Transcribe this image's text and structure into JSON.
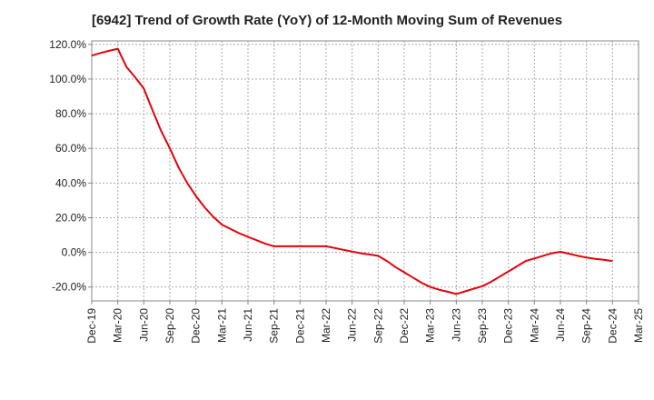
{
  "chart_data": {
    "type": "line",
    "title": "[6942]  Trend of Growth Rate (YoY) of 12-Month Moving Sum of Revenues",
    "xlabel": "",
    "ylabel": "",
    "ylim": [
      -28,
      122
    ],
    "yticks": [
      -20,
      0,
      20,
      40,
      60,
      80,
      100,
      120
    ],
    "ytick_labels": [
      "-20.0%",
      "0.0%",
      "20.0%",
      "40.0%",
      "60.0%",
      "80.0%",
      "100.0%",
      "120.0%"
    ],
    "xtick_labels": [
      "Dec-19",
      "Mar-20",
      "Jun-20",
      "Sep-20",
      "Dec-20",
      "Mar-21",
      "Jun-21",
      "Sep-21",
      "Dec-21",
      "Mar-22",
      "Jun-22",
      "Sep-22",
      "Dec-22",
      "Mar-23",
      "Jun-23",
      "Sep-23",
      "Dec-23",
      "Mar-24",
      "Jun-24",
      "Sep-24",
      "Dec-24",
      "Mar-25"
    ],
    "grid": true,
    "line_color": "#e8000b",
    "series": [
      {
        "x": [
          "Dec-19",
          "Jan-20",
          "Feb-20",
          "Mar-20",
          "Apr-20",
          "May-20",
          "Jun-20",
          "Jul-20",
          "Aug-20",
          "Sep-20",
          "Oct-20",
          "Nov-20",
          "Dec-20",
          "Jan-21",
          "Feb-21",
          "Mar-21",
          "Apr-21",
          "May-21",
          "Jun-21",
          "Jul-21",
          "Aug-21",
          "Sep-21",
          "Oct-21",
          "Nov-21",
          "Dec-21",
          "Jan-22",
          "Feb-22",
          "Mar-22",
          "Apr-22",
          "May-22",
          "Jun-22",
          "Jul-22",
          "Aug-22",
          "Sep-22",
          "Oct-22",
          "Nov-22",
          "Dec-22",
          "Jan-23",
          "Feb-23",
          "Mar-23",
          "Apr-23",
          "May-23",
          "Jun-23",
          "Jul-23",
          "Aug-23",
          "Sep-23",
          "Oct-23",
          "Nov-23",
          "Dec-23",
          "Jan-24",
          "Feb-24",
          "Mar-24",
          "Apr-24",
          "May-24",
          "Jun-24",
          "Jul-24",
          "Aug-24",
          "Sep-24",
          "Oct-24",
          "Nov-24",
          "Dec-24"
        ],
        "values": [
          113.5,
          115.0,
          116.3,
          117.5,
          107.0,
          101.0,
          94.5,
          82.0,
          70.0,
          60.0,
          49.0,
          40.0,
          32.5,
          26.0,
          20.5,
          16.0,
          13.5,
          11.0,
          9.0,
          7.0,
          5.0,
          3.5,
          3.5,
          3.5,
          3.5,
          3.5,
          3.5,
          3.5,
          2.5,
          1.5,
          0.5,
          -0.5,
          -1.2,
          -2.0,
          -5.0,
          -8.5,
          -11.5,
          -14.5,
          -17.5,
          -20.0,
          -21.5,
          -22.7,
          -24.0,
          -22.5,
          -21.0,
          -19.5,
          -17.0,
          -14.0,
          -11.0,
          -8.0,
          -5.0,
          -3.5,
          -2.0,
          -0.5,
          0.3,
          -0.8,
          -2.0,
          -3.0,
          -3.7,
          -4.3,
          -5.0
        ]
      }
    ]
  }
}
